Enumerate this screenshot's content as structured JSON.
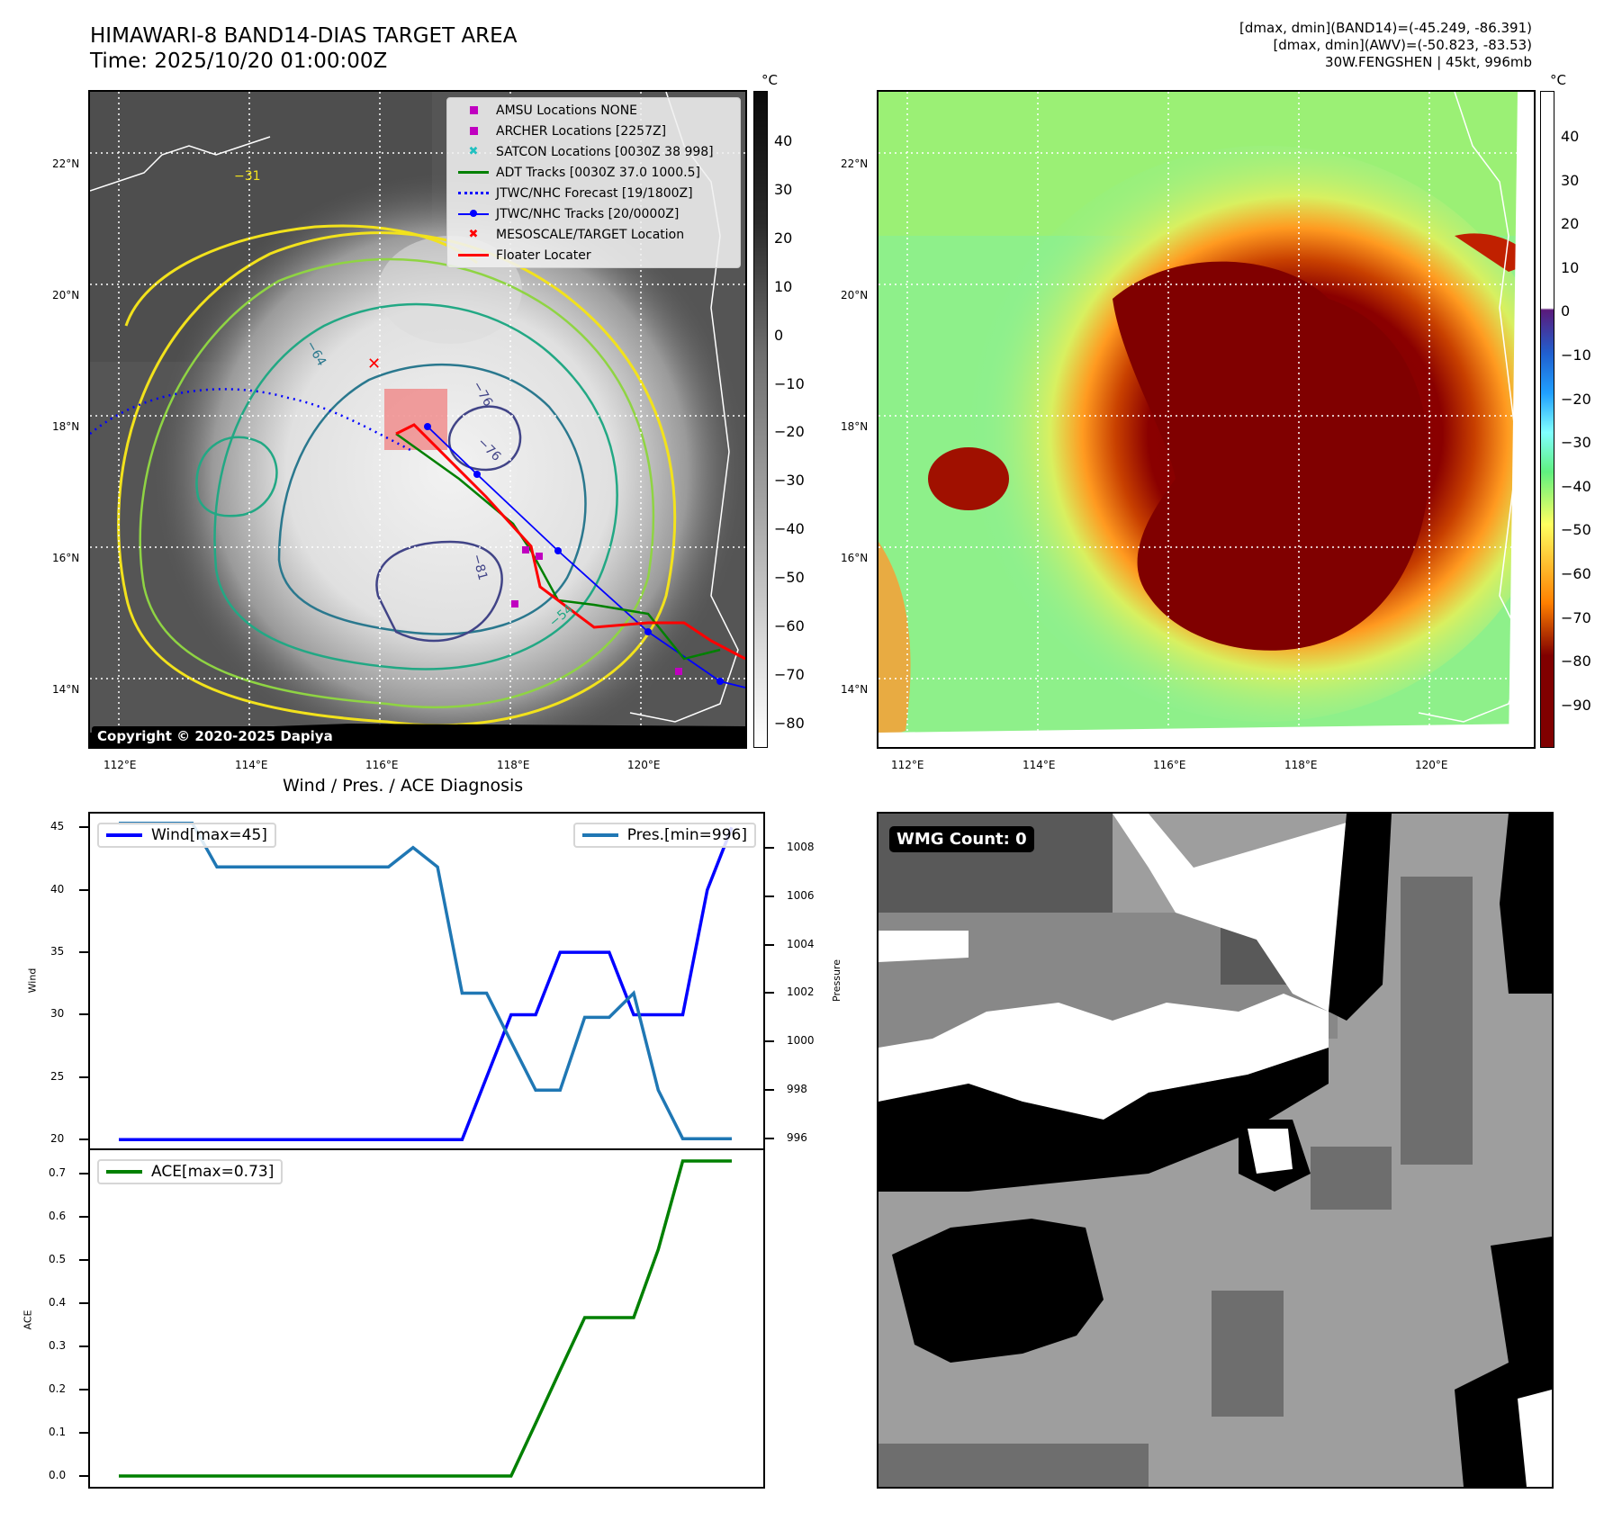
{
  "header": {
    "title": "HIMAWARI-8 BAND14-DIAS TARGET AREA",
    "time": "Time: 2025/10/20 01:00:00Z",
    "stats_band14": "[dmax, dmin](BAND14)=(-45.249, -86.391)",
    "stats_awv": "[dmax, dmin](AWV)=(-50.823, -83.53)",
    "storm": "30W.FENGSHEN | 45kt, 996mb"
  },
  "maps": {
    "lat_ticks": [
      "22°N",
      "20°N",
      "18°N",
      "16°N",
      "14°N"
    ],
    "lon_ticks": [
      "112°E",
      "114°E",
      "116°E",
      "118°E",
      "120°E"
    ],
    "left_colorbar": {
      "unit": "°C",
      "ticks": [
        "40",
        "30",
        "20",
        "10",
        "0",
        "−10",
        "−20",
        "−30",
        "−40",
        "−50",
        "−60",
        "−70",
        "−80"
      ]
    },
    "right_colorbar": {
      "unit": "°C",
      "ticks": [
        "40",
        "30",
        "20",
        "10",
        "0",
        "−10",
        "−20",
        "−30",
        "−40",
        "−50",
        "−60",
        "−70",
        "−80",
        "−90"
      ]
    },
    "contour_labels": [
      "−31",
      "−64",
      "−76",
      "−81",
      "−54",
      "−76"
    ],
    "legend": [
      {
        "label": "AMSU Locations NONE",
        "symbol": "square",
        "color": "#c000c0"
      },
      {
        "label": "ARCHER Locations [2257Z]",
        "symbol": "square",
        "color": "#c000c0"
      },
      {
        "label": "SATCON Locations [0030Z 38 998]",
        "symbol": "x",
        "color": "#20c0c0"
      },
      {
        "label": "ADT Tracks [0030Z 37.0 1000.5]",
        "symbol": "line",
        "color": "#008000"
      },
      {
        "label": "JTWC/NHC Forecast [19/1800Z]",
        "symbol": "dotted",
        "color": "#0000ff"
      },
      {
        "label": "JTWC/NHC Tracks [20/0000Z]",
        "symbol": "line-dot",
        "color": "#0000ff"
      },
      {
        "label": "MESOSCALE/TARGET Location",
        "symbol": "x",
        "color": "#ff0000"
      },
      {
        "label": "Floater Locater",
        "symbol": "line",
        "color": "#ff0000"
      }
    ],
    "copyright": "Copyright © 2020-2025 Dapiya"
  },
  "chart_data": [
    {
      "type": "line",
      "title": "Wind / Pres. / ACE Diagnosis",
      "xlabel": "",
      "ylabel": "Wind",
      "ylabel_right": "Pressure",
      "ylim": [
        19.3,
        46.1
      ],
      "ylim_right": [
        995.6,
        1009.4
      ],
      "yticks": [
        "45",
        "40",
        "35",
        "30",
        "25",
        "20"
      ],
      "yticks_right": [
        "1008",
        "1006",
        "1004",
        "1002",
        "1000",
        "998",
        "996"
      ],
      "x": [
        0,
        1,
        2,
        3,
        4,
        5,
        6,
        7,
        8,
        9,
        10,
        11,
        12,
        13,
        14,
        15,
        16,
        17,
        18,
        19,
        20,
        21,
        22,
        23,
        24,
        25
      ],
      "series": [
        {
          "name": "Wind[max=45]",
          "color": "#0000ff",
          "axis": "left",
          "values": [
            20,
            20,
            20,
            20,
            20,
            20,
            20,
            20,
            20,
            20,
            20,
            20,
            20,
            20,
            20,
            25,
            30,
            30,
            35,
            35,
            35,
            30,
            30,
            30,
            40,
            45
          ]
        },
        {
          "name": "Pres.[min=996]",
          "color": "#1f77b4",
          "axis": "right",
          "values": [
            1009,
            1009,
            1009,
            1009,
            1007.2,
            1007.2,
            1007.2,
            1007.2,
            1007.2,
            1007.2,
            1007.2,
            1007.2,
            1008,
            1007.2,
            1002,
            1002,
            1000,
            998,
            998,
            1001,
            1001,
            1002,
            998,
            996,
            996,
            996
          ]
        }
      ],
      "legend_left": "Wind[max=45]",
      "legend_right": "Pres.[min=996]"
    },
    {
      "type": "line",
      "ylabel": "ACE",
      "ylim": [
        -0.025,
        0.755
      ],
      "yticks": [
        "0.7",
        "0.6",
        "0.5",
        "0.4",
        "0.3",
        "0.2",
        "0.1",
        "0.0"
      ],
      "x": [
        0,
        1,
        2,
        3,
        4,
        5,
        6,
        7,
        8,
        9,
        10,
        11,
        12,
        13,
        14,
        15,
        16,
        17,
        18,
        19,
        20,
        21,
        22,
        23,
        24,
        25
      ],
      "series": [
        {
          "name": "ACE[max=0.73]",
          "color": "#008000",
          "values": [
            0,
            0,
            0,
            0,
            0,
            0,
            0,
            0,
            0,
            0,
            0,
            0,
            0,
            0,
            0,
            0,
            0,
            0.122,
            0.245,
            0.367,
            0.367,
            0.367,
            0.525,
            0.73,
            0.73,
            0.73
          ]
        }
      ],
      "legend": "ACE[max=0.73]"
    }
  ],
  "wmg": {
    "badge": "WMG Count: 0"
  }
}
